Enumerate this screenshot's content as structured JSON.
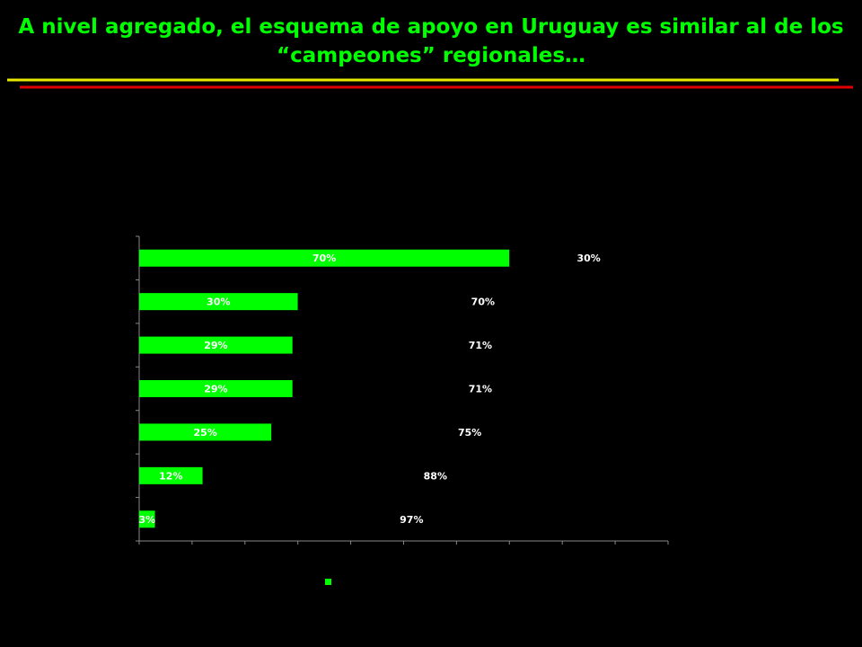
{
  "title": {
    "line1": "A nivel agregado, el esquema de apoyo en Uruguay es similar al de los",
    "line2": "“campeones” regionales…"
  },
  "colors": {
    "background": "#000000",
    "title": "#00ff00",
    "bar": "#00ff00",
    "axis": "#888888",
    "rule_yellow": "#e8e800",
    "rule_red": "#e00000",
    "label": "#ffffff"
  },
  "chart_data": {
    "type": "bar",
    "orientation": "horizontal",
    "stacked": true,
    "xlim": [
      0,
      100
    ],
    "grid": false,
    "series": [
      {
        "values": [
          70,
          30,
          29,
          29,
          25,
          12,
          3
        ],
        "labels": [
          "70%",
          "30%",
          "29%",
          "29%",
          "25%",
          "12%",
          "3%"
        ],
        "color": "#00ff00"
      },
      {
        "values": [
          30,
          70,
          71,
          71,
          75,
          88,
          97
        ],
        "labels": [
          "30%",
          "70%",
          "71%",
          "71%",
          "75%",
          "88%",
          "97%"
        ],
        "color": "#000000"
      }
    ],
    "legend": {
      "placement": "bottom",
      "color": "#00ff00"
    }
  }
}
